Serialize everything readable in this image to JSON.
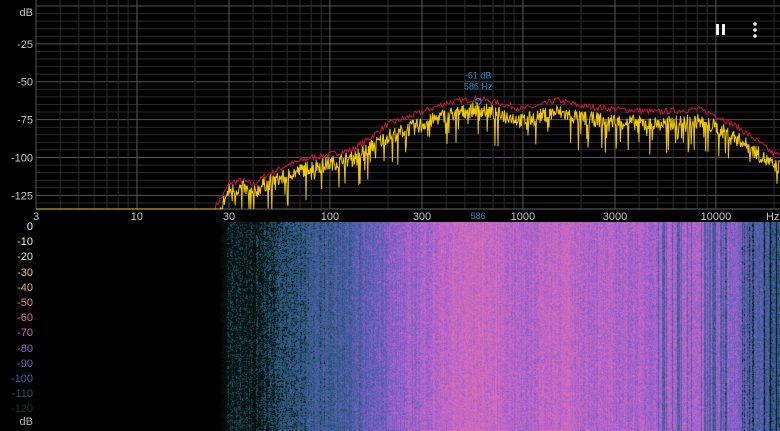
{
  "toolbar": {
    "pause_icon": "pause-icon",
    "more_icon": "more-vertical-icon"
  },
  "chart_data": [
    {
      "type": "line",
      "title": "",
      "xlabel": "Hz",
      "ylabel": "dB",
      "x_scale": "log",
      "xlim": [
        3,
        22000
      ],
      "ylim": [
        -134,
        0
      ],
      "grid": true,
      "x_ticks": [
        "3",
        "10",
        "30",
        "100",
        "300",
        "1000",
        "3000",
        "10000"
      ],
      "x_tick_values": [
        3,
        10,
        30,
        100,
        300,
        1000,
        3000,
        10000
      ],
      "y_ticks": [
        "-25",
        "-50",
        "-75",
        "-100",
        "-125"
      ],
      "y_tick_values": [
        -25,
        -50,
        -75,
        -100,
        -125
      ],
      "peak_marker": {
        "db_label": "-61 dB",
        "hz_label": "586 Hz",
        "axis_label": "586",
        "freq": 586,
        "db": -61,
        "color": "#1e90d0"
      },
      "series": [
        {
          "role": "peak-hold",
          "color": "#d0143c",
          "points": [
            [
              25,
              -134
            ],
            [
              28,
              -125
            ],
            [
              30,
              -117
            ],
            [
              35,
              -115
            ],
            [
              40,
              -118
            ],
            [
              45,
              -113
            ],
            [
              50,
              -110
            ],
            [
              60,
              -105
            ],
            [
              80,
              -100
            ],
            [
              100,
              -98
            ],
            [
              130,
              -95
            ],
            [
              150,
              -90
            ],
            [
              200,
              -78
            ],
            [
              300,
              -70
            ],
            [
              400,
              -64
            ],
            [
              586,
              -61
            ],
            [
              800,
              -65
            ],
            [
              1000,
              -68
            ],
            [
              1200,
              -66
            ],
            [
              1500,
              -62
            ],
            [
              2000,
              -66
            ],
            [
              3000,
              -68
            ],
            [
              5000,
              -70
            ],
            [
              8000,
              -68
            ],
            [
              10000,
              -72
            ],
            [
              13000,
              -80
            ],
            [
              16000,
              -88
            ],
            [
              20000,
              -98
            ]
          ]
        },
        {
          "role": "live",
          "color": "#f0c800",
          "points": [
            [
              3,
              -134
            ],
            [
              27,
              -134
            ],
            [
              30,
              -122
            ],
            [
              35,
              -120
            ],
            [
              40,
              -124
            ],
            [
              45,
              -118
            ],
            [
              50,
              -116
            ],
            [
              60,
              -112
            ],
            [
              80,
              -106
            ],
            [
              100,
              -104
            ],
            [
              130,
              -101
            ],
            [
              150,
              -96
            ],
            [
              200,
              -86
            ],
            [
              300,
              -78
            ],
            [
              400,
              -72
            ],
            [
              586,
              -68
            ],
            [
              800,
              -72
            ],
            [
              1000,
              -76
            ],
            [
              1200,
              -73
            ],
            [
              1500,
              -70
            ],
            [
              2000,
              -74
            ],
            [
              3000,
              -76
            ],
            [
              5000,
              -78
            ],
            [
              8000,
              -76
            ],
            [
              10000,
              -80
            ],
            [
              13000,
              -88
            ],
            [
              16000,
              -96
            ],
            [
              20000,
              -106
            ]
          ]
        }
      ]
    },
    {
      "type": "heatmap",
      "title": "",
      "colorbar_label": "dB",
      "colorbar_ticks": [
        "0",
        "-10",
        "-20",
        "-30",
        "-40",
        "-50",
        "-60",
        "-70",
        "-80",
        "-90",
        "-100",
        "-110",
        "-120"
      ],
      "colorbar_colors": [
        "#ffffff",
        "#f4f4e4",
        "#ece8b8",
        "#e8cc98",
        "#eaa878",
        "#e88888",
        "#e070a8",
        "#c868c8",
        "#a060d0",
        "#7060c0",
        "#4a5ca8",
        "#2a5a78",
        "#0e3c38"
      ]
    }
  ]
}
